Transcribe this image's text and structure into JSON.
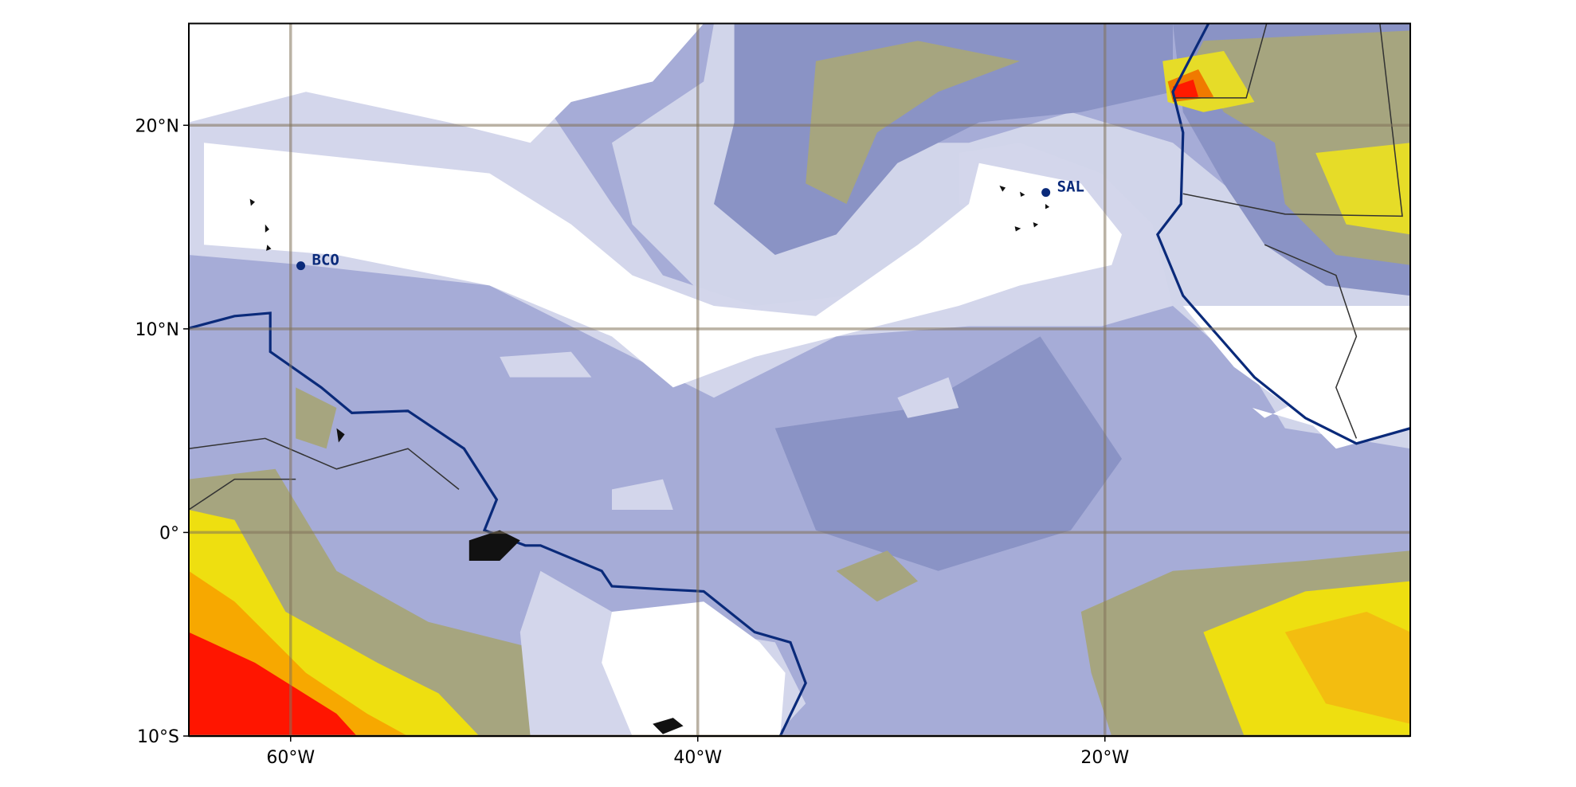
{
  "map": {
    "xlim": [
      -65,
      -5
    ],
    "ylim": [
      -10,
      25
    ],
    "xticks": [
      {
        "value": -60,
        "label": "60°W"
      },
      {
        "value": -40,
        "label": "40°W"
      },
      {
        "value": -20,
        "label": "20°W"
      }
    ],
    "yticks": [
      {
        "value": -10,
        "label": "10°S"
      },
      {
        "value": 0,
        "label": "0°"
      },
      {
        "value": 10,
        "label": "10°N"
      },
      {
        "value": 20,
        "label": "20°N"
      }
    ],
    "grid": true,
    "stations": [
      {
        "label": "BCO",
        "lon": -59.5,
        "lat": 13.1
      },
      {
        "label": "SAL",
        "lon": -22.9,
        "lat": 16.7
      }
    ]
  }
}
